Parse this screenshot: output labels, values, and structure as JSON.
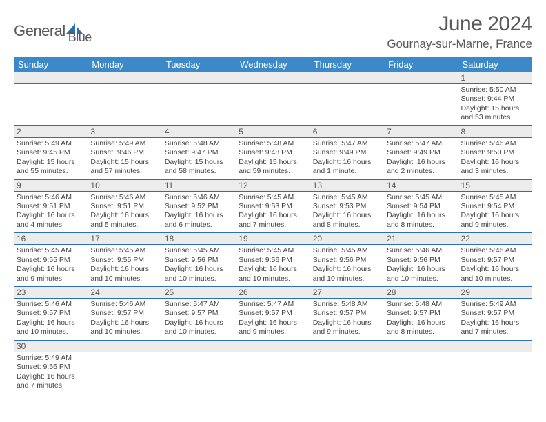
{
  "brand": {
    "name_part1": "General",
    "name_part2": "Blue"
  },
  "title": "June 2024",
  "location": "Gournay-sur-Marne, France",
  "colors": {
    "header_bg": "#3b89c9",
    "header_text": "#ffffff",
    "daynum_bg": "#ececec",
    "row_border": "#2b6fb5",
    "body_text": "#444444",
    "title_text": "#5a5a5a",
    "brand_blue": "#2b6fb5"
  },
  "columns": [
    "Sunday",
    "Monday",
    "Tuesday",
    "Wednesday",
    "Thursday",
    "Friday",
    "Saturday"
  ],
  "weeks": [
    [
      null,
      null,
      null,
      null,
      null,
      null,
      {
        "n": "1",
        "sr": "Sunrise: 5:50 AM",
        "ss": "Sunset: 9:44 PM",
        "d1": "Daylight: 15 hours",
        "d2": "and 53 minutes."
      }
    ],
    [
      {
        "n": "2",
        "sr": "Sunrise: 5:49 AM",
        "ss": "Sunset: 9:45 PM",
        "d1": "Daylight: 15 hours",
        "d2": "and 55 minutes."
      },
      {
        "n": "3",
        "sr": "Sunrise: 5:49 AM",
        "ss": "Sunset: 9:46 PM",
        "d1": "Daylight: 15 hours",
        "d2": "and 57 minutes."
      },
      {
        "n": "4",
        "sr": "Sunrise: 5:48 AM",
        "ss": "Sunset: 9:47 PM",
        "d1": "Daylight: 15 hours",
        "d2": "and 58 minutes."
      },
      {
        "n": "5",
        "sr": "Sunrise: 5:48 AM",
        "ss": "Sunset: 9:48 PM",
        "d1": "Daylight: 15 hours",
        "d2": "and 59 minutes."
      },
      {
        "n": "6",
        "sr": "Sunrise: 5:47 AM",
        "ss": "Sunset: 9:49 PM",
        "d1": "Daylight: 16 hours",
        "d2": "and 1 minute."
      },
      {
        "n": "7",
        "sr": "Sunrise: 5:47 AM",
        "ss": "Sunset: 9:49 PM",
        "d1": "Daylight: 16 hours",
        "d2": "and 2 minutes."
      },
      {
        "n": "8",
        "sr": "Sunrise: 5:46 AM",
        "ss": "Sunset: 9:50 PM",
        "d1": "Daylight: 16 hours",
        "d2": "and 3 minutes."
      }
    ],
    [
      {
        "n": "9",
        "sr": "Sunrise: 5:46 AM",
        "ss": "Sunset: 9:51 PM",
        "d1": "Daylight: 16 hours",
        "d2": "and 4 minutes."
      },
      {
        "n": "10",
        "sr": "Sunrise: 5:46 AM",
        "ss": "Sunset: 9:51 PM",
        "d1": "Daylight: 16 hours",
        "d2": "and 5 minutes."
      },
      {
        "n": "11",
        "sr": "Sunrise: 5:46 AM",
        "ss": "Sunset: 9:52 PM",
        "d1": "Daylight: 16 hours",
        "d2": "and 6 minutes."
      },
      {
        "n": "12",
        "sr": "Sunrise: 5:45 AM",
        "ss": "Sunset: 9:53 PM",
        "d1": "Daylight: 16 hours",
        "d2": "and 7 minutes."
      },
      {
        "n": "13",
        "sr": "Sunrise: 5:45 AM",
        "ss": "Sunset: 9:53 PM",
        "d1": "Daylight: 16 hours",
        "d2": "and 8 minutes."
      },
      {
        "n": "14",
        "sr": "Sunrise: 5:45 AM",
        "ss": "Sunset: 9:54 PM",
        "d1": "Daylight: 16 hours",
        "d2": "and 8 minutes."
      },
      {
        "n": "15",
        "sr": "Sunrise: 5:45 AM",
        "ss": "Sunset: 9:54 PM",
        "d1": "Daylight: 16 hours",
        "d2": "and 9 minutes."
      }
    ],
    [
      {
        "n": "16",
        "sr": "Sunrise: 5:45 AM",
        "ss": "Sunset: 9:55 PM",
        "d1": "Daylight: 16 hours",
        "d2": "and 9 minutes."
      },
      {
        "n": "17",
        "sr": "Sunrise: 5:45 AM",
        "ss": "Sunset: 9:55 PM",
        "d1": "Daylight: 16 hours",
        "d2": "and 10 minutes."
      },
      {
        "n": "18",
        "sr": "Sunrise: 5:45 AM",
        "ss": "Sunset: 9:56 PM",
        "d1": "Daylight: 16 hours",
        "d2": "and 10 minutes."
      },
      {
        "n": "19",
        "sr": "Sunrise: 5:45 AM",
        "ss": "Sunset: 9:56 PM",
        "d1": "Daylight: 16 hours",
        "d2": "and 10 minutes."
      },
      {
        "n": "20",
        "sr": "Sunrise: 5:45 AM",
        "ss": "Sunset: 9:56 PM",
        "d1": "Daylight: 16 hours",
        "d2": "and 10 minutes."
      },
      {
        "n": "21",
        "sr": "Sunrise: 5:46 AM",
        "ss": "Sunset: 9:56 PM",
        "d1": "Daylight: 16 hours",
        "d2": "and 10 minutes."
      },
      {
        "n": "22",
        "sr": "Sunrise: 5:46 AM",
        "ss": "Sunset: 9:57 PM",
        "d1": "Daylight: 16 hours",
        "d2": "and 10 minutes."
      }
    ],
    [
      {
        "n": "23",
        "sr": "Sunrise: 5:46 AM",
        "ss": "Sunset: 9:57 PM",
        "d1": "Daylight: 16 hours",
        "d2": "and 10 minutes."
      },
      {
        "n": "24",
        "sr": "Sunrise: 5:46 AM",
        "ss": "Sunset: 9:57 PM",
        "d1": "Daylight: 16 hours",
        "d2": "and 10 minutes."
      },
      {
        "n": "25",
        "sr": "Sunrise: 5:47 AM",
        "ss": "Sunset: 9:57 PM",
        "d1": "Daylight: 16 hours",
        "d2": "and 10 minutes."
      },
      {
        "n": "26",
        "sr": "Sunrise: 5:47 AM",
        "ss": "Sunset: 9:57 PM",
        "d1": "Daylight: 16 hours",
        "d2": "and 9 minutes."
      },
      {
        "n": "27",
        "sr": "Sunrise: 5:48 AM",
        "ss": "Sunset: 9:57 PM",
        "d1": "Daylight: 16 hours",
        "d2": "and 9 minutes."
      },
      {
        "n": "28",
        "sr": "Sunrise: 5:48 AM",
        "ss": "Sunset: 9:57 PM",
        "d1": "Daylight: 16 hours",
        "d2": "and 8 minutes."
      },
      {
        "n": "29",
        "sr": "Sunrise: 5:49 AM",
        "ss": "Sunset: 9:57 PM",
        "d1": "Daylight: 16 hours",
        "d2": "and 7 minutes."
      }
    ],
    [
      {
        "n": "30",
        "sr": "Sunrise: 5:49 AM",
        "ss": "Sunset: 9:56 PM",
        "d1": "Daylight: 16 hours",
        "d2": "and 7 minutes."
      },
      null,
      null,
      null,
      null,
      null,
      null
    ]
  ]
}
